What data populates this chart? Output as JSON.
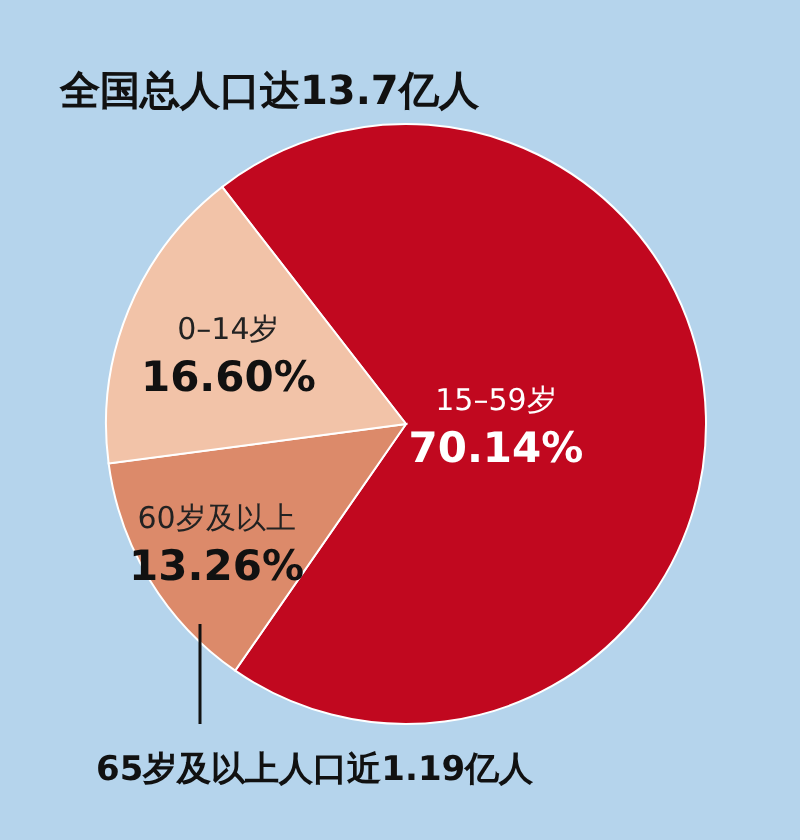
{
  "chart_data": {
    "type": "pie",
    "title": "全国总人口达13.7亿人",
    "categories": [
      "15–59岁",
      "60岁及以上",
      "0–14岁"
    ],
    "values": [
      70.14,
      13.26,
      16.6
    ],
    "value_labels": [
      "70.14%",
      "13.26%",
      "16.60%"
    ],
    "colors": [
      "#c1081f",
      "#dc8a6a",
      "#f2c3a8"
    ],
    "annotations": [
      "65岁及以上人口近1.19亿人"
    ]
  }
}
